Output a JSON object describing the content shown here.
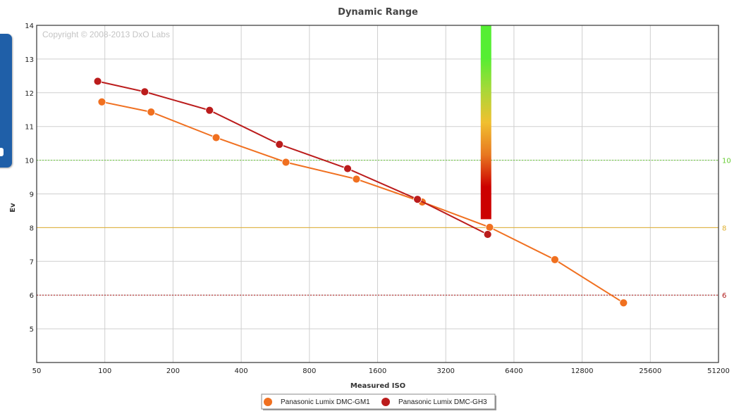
{
  "chart_data": {
    "type": "line",
    "title": "Dynamic Range",
    "xlabel": "Measured ISO",
    "ylabel": "Ev",
    "x_scale": "log2",
    "xlim": [
      50,
      51200
    ],
    "ylim": [
      4,
      14
    ],
    "x_ticks": [
      50,
      100,
      200,
      400,
      800,
      1600,
      3200,
      6400,
      12800,
      25600,
      51200
    ],
    "x_tick_labels": [
      "50",
      "100",
      "200",
      "400",
      "800",
      "1600",
      "3200",
      "6400",
      "12800",
      "25600",
      "51200"
    ],
    "y_ticks": [
      5,
      6,
      7,
      8,
      9,
      10,
      11,
      12,
      13,
      14
    ],
    "y_tick_labels": [
      "5",
      "6",
      "7",
      "8",
      "9",
      "10",
      "11",
      "12",
      "13",
      "14"
    ],
    "grid": true,
    "watermark": "Copyright © 2008-2013 DxO Labs",
    "reference_lines": [
      {
        "value": 10,
        "label": "10",
        "color": "#66cc33",
        "style": "dotted"
      },
      {
        "value": 8,
        "label": "8",
        "color": "#e0b030",
        "style": "solid"
      },
      {
        "value": 6,
        "label": "6",
        "color": "#b01818",
        "style": "dotted"
      }
    ],
    "quality_bar": {
      "x": 4800,
      "y_range": [
        8.25,
        14
      ],
      "colors": [
        "#cc0000",
        "#cc0000",
        "#e87820",
        "#f0c030",
        "#a8d838",
        "#55ee33",
        "#55ee33"
      ]
    },
    "series": [
      {
        "name": "Panasonic Lumix DMC-GM1",
        "color": "#f07020",
        "x": [
          97,
          160,
          310,
          630,
          1290,
          2520,
          5000,
          9700,
          19500
        ],
        "y": [
          11.73,
          11.43,
          10.67,
          9.94,
          9.44,
          8.76,
          8.01,
          7.05,
          5.77
        ]
      },
      {
        "name": "Panasonic Lumix DMC-GH3",
        "color": "#bb1c1c",
        "x": [
          93,
          150,
          290,
          590,
          1180,
          2400,
          4900
        ],
        "y": [
          12.34,
          12.03,
          11.48,
          10.47,
          9.75,
          8.84,
          7.8
        ]
      }
    ],
    "legend_position": "bottom-center"
  }
}
